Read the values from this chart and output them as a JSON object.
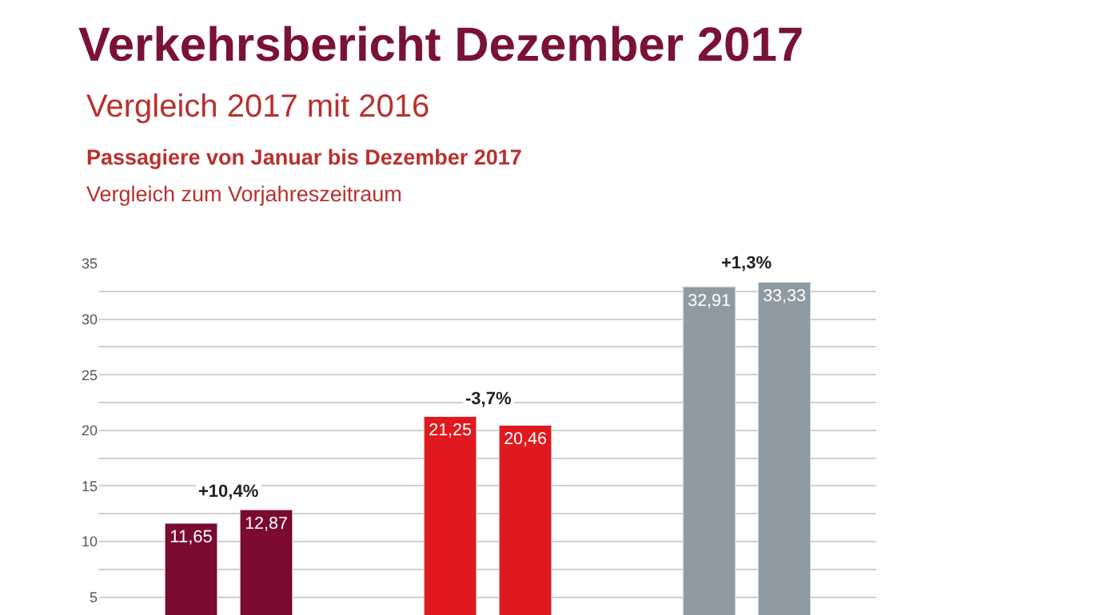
{
  "chart_data": {
    "type": "bar",
    "title": "Verkehrsbericht Dezember 2017",
    "subtitle": "Vergleich 2017 mit 2016",
    "annotations": [
      "Passagiere von Januar bis Dezember 2017",
      "Vergleich zum Vorjahreszeitraum",
      "+10,4%",
      "-3,7%",
      "+1,3%"
    ],
    "categories": [
      null,
      null,
      null
    ],
    "series": [
      {
        "colors": [
          "#7a0a2e",
          "#e0191e",
          "#8f9ba3"
        ],
        "values": [
          11.65,
          21.25,
          32.91
        ],
        "value_labels": [
          "11,65",
          "21,25",
          "32,91"
        ]
      },
      {
        "colors": [
          "#7a0a2e",
          "#e0191e",
          "#8f9ba3"
        ],
        "values": [
          12.87,
          20.46,
          33.33
        ],
        "value_labels": [
          "12,87",
          "20,46",
          "33,33"
        ]
      }
    ],
    "ylim": [
      3.4,
      35
    ],
    "yticks": [
      5,
      {
        "value": 7.5,
        "label": null
      },
      10,
      {
        "value": 12.5,
        "label": null
      },
      15,
      {
        "value": 17.5,
        "label": null
      },
      20,
      {
        "value": 22.5,
        "label": null
      },
      25,
      {
        "value": 27.5,
        "label": null
      },
      30,
      {
        "value": 32.5,
        "label": null
      },
      35
    ],
    "grid": "y"
  }
}
